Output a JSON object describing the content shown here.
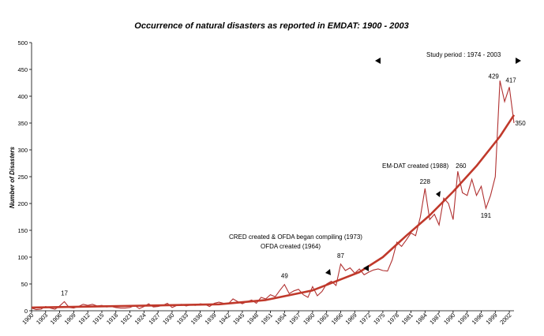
{
  "chart_data": {
    "type": "line",
    "title": "Occurrence of natural disasters as reported in EMDAT: 1900 - 2003",
    "ylabel": "Number of Disasters",
    "xlabel": "",
    "ylim": [
      0,
      500
    ],
    "yticks": [
      0,
      50,
      100,
      150,
      200,
      250,
      300,
      350,
      400,
      450,
      500
    ],
    "xlim": [
      1900,
      2003
    ],
    "xticks": [
      1900,
      1903,
      1906,
      1909,
      1912,
      1915,
      1918,
      1921,
      1924,
      1927,
      1930,
      1933,
      1936,
      1939,
      1942,
      1945,
      1948,
      1951,
      1954,
      1957,
      1960,
      1963,
      1966,
      1969,
      1972,
      1975,
      1978,
      1981,
      1984,
      1987,
      1990,
      1993,
      1996,
      1999,
      2002
    ],
    "grid": false,
    "legend": "none",
    "colors": {
      "series": "#b03030",
      "trend": "#c0392b",
      "text": "#000000"
    },
    "series": [
      {
        "x": [
          1900,
          1901,
          1902,
          1903,
          1904,
          1905,
          1906,
          1907,
          1908,
          1909,
          1910,
          1911,
          1912,
          1913,
          1914,
          1915,
          1916,
          1917,
          1918,
          1919,
          1920,
          1921,
          1922,
          1923,
          1924,
          1925,
          1926,
          1927,
          1928,
          1929,
          1930,
          1931,
          1932,
          1933,
          1934,
          1935,
          1936,
          1937,
          1938,
          1939,
          1940,
          1941,
          1942,
          1943,
          1944,
          1945,
          1946,
          1947,
          1948,
          1949,
          1950,
          1951,
          1952,
          1953,
          1954,
          1955,
          1956,
          1957,
          1958,
          1959,
          1960,
          1961,
          1962,
          1963,
          1964,
          1965,
          1966,
          1967,
          1968,
          1969,
          1970,
          1971,
          1972,
          1973,
          1974,
          1975,
          1976,
          1977,
          1978,
          1979,
          1980,
          1981,
          1982,
          1983,
          1984,
          1985,
          1986,
          1987,
          1988,
          1989,
          1990,
          1991,
          1992,
          1993,
          1994,
          1995,
          1996,
          1997,
          1998,
          1999,
          2000,
          2001,
          2002,
          2003
        ],
        "y": [
          5,
          2,
          3,
          8,
          5,
          3,
          9,
          17,
          6,
          5,
          8,
          12,
          10,
          12,
          9,
          10,
          7,
          8,
          6,
          5,
          5,
          6,
          10,
          4,
          8,
          13,
          7,
          8,
          10,
          14,
          6,
          10,
          12,
          9,
          11,
          10,
          13,
          12,
          8,
          14,
          16,
          14,
          13,
          22,
          17,
          13,
          17,
          20,
          14,
          25,
          22,
          30,
          26,
          38,
          49,
          32,
          37,
          40,
          30,
          25,
          45,
          28,
          36,
          50,
          55,
          47,
          87,
          75,
          80,
          70,
          78,
          67,
          72,
          76,
          78,
          75,
          74,
          95,
          128,
          120,
          132,
          145,
          140,
          175,
          228,
          170,
          180,
          160,
          210,
          200,
          170,
          260,
          220,
          215,
          245,
          215,
          232,
          191,
          215,
          250,
          429,
          390,
          417,
          350
        ]
      }
    ],
    "trend": {
      "x": [
        1900,
        1920,
        1940,
        1950,
        1960,
        1965,
        1970,
        1975,
        1980,
        1985,
        1990,
        1995,
        2000,
        2003
      ],
      "y": [
        6,
        9,
        12,
        20,
        38,
        55,
        72,
        100,
        140,
        178,
        222,
        270,
        325,
        365
      ]
    },
    "data_labels": [
      {
        "text": "17",
        "x": 1907,
        "y": 17
      },
      {
        "text": "49",
        "x": 1954,
        "y": 49
      },
      {
        "text": "87",
        "x": 1966,
        "y": 87
      },
      {
        "text": "228",
        "x": 1984,
        "y": 228
      },
      {
        "text": "260",
        "x": 1991,
        "y": 260
      },
      {
        "text": "191",
        "x": 1997,
        "y": 191
      },
      {
        "text": "429",
        "x": 2000,
        "y": 429
      },
      {
        "text": "417",
        "x": 2002,
        "y": 417
      },
      {
        "text": "350",
        "x": 2003,
        "y": 350
      }
    ],
    "annotations": {
      "study_period": "Study period : 1974 - 2003",
      "cred": "CRED created & OFDA began compiling (1973)",
      "ofda": "OFDA created (1964)",
      "emdat": "EM-DAT created (1988)"
    }
  }
}
